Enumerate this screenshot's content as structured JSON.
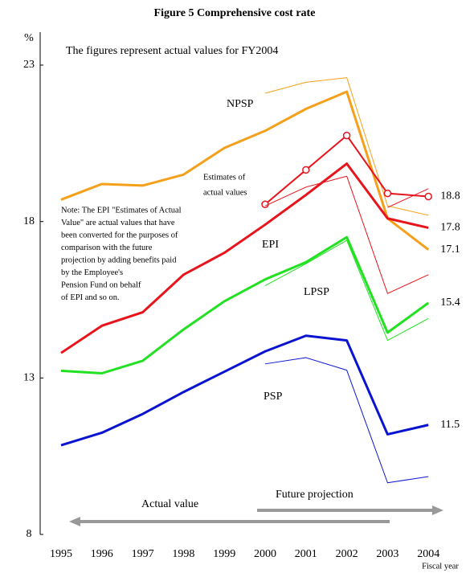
{
  "chart_data": {
    "type": "line",
    "title": "Figure 5  Comprehensive cost rate",
    "y_unit": "%",
    "x_label": "Fiscal year",
    "categories": [
      "1995",
      "1996",
      "1997",
      "1998",
      "1999",
      "2000",
      "2001",
      "2002",
      "2003",
      "2004"
    ],
    "ylim": [
      8,
      23
    ],
    "yticks": [
      8,
      13,
      18,
      23
    ],
    "series": [
      {
        "color": "#f5a01a",
        "linewidth": 3,
        "end_label": true,
        "values": [
          18.7,
          19.2,
          19.15,
          19.5,
          20.35,
          20.9,
          21.6,
          22.15,
          18.1,
          17.1
        ]
      },
      {
        "color": "#f5a01a",
        "linewidth": 1,
        "values": [
          null,
          null,
          null,
          null,
          null,
          22.1,
          22.45,
          22.6,
          18.5,
          18.2
        ]
      },
      {
        "color": "#e8141b",
        "linewidth": 3,
        "end_label": true,
        "values": [
          13.8,
          14.67,
          15.1,
          16.3,
          17.0,
          17.9,
          18.85,
          19.85,
          18.1,
          17.8
        ]
      },
      {
        "color": "#e8141b",
        "linewidth": 2,
        "marker": "circle",
        "end_label": true,
        "values": [
          null,
          null,
          null,
          null,
          null,
          18.55,
          19.65,
          20.75,
          18.9,
          18.8
        ]
      },
      {
        "color": "#e8141b",
        "linewidth": 1,
        "values": [
          null,
          null,
          null,
          null,
          null,
          18.5,
          19.1,
          19.45,
          15.7,
          16.3
        ]
      },
      {
        "color": "#e8141b",
        "linewidth": 1,
        "values": [
          null,
          null,
          null,
          null,
          null,
          null,
          null,
          null,
          18.45,
          19.05
        ]
      },
      {
        "color": "#22e022",
        "linewidth": 3,
        "end_label": true,
        "values": [
          13.23,
          13.15,
          13.55,
          14.55,
          15.45,
          16.15,
          16.7,
          17.5,
          14.45,
          15.4
        ]
      },
      {
        "color": "#22e022",
        "linewidth": 1,
        "values": [
          null,
          null,
          null,
          null,
          null,
          15.95,
          16.65,
          17.4,
          14.2,
          14.9
        ]
      },
      {
        "color": "#0a14d0",
        "linewidth": 3,
        "end_label": true,
        "values": [
          10.85,
          11.25,
          11.85,
          12.55,
          13.2,
          13.85,
          14.35,
          14.2,
          11.2,
          11.5
        ]
      },
      {
        "color": "#0a14d0",
        "linewidth": 1,
        "values": [
          null,
          null,
          null,
          null,
          null,
          13.45,
          13.65,
          13.25,
          9.65,
          9.85
        ]
      }
    ],
    "annotations": [
      {
        "text": "The figures represent actual values for FY2004",
        "color": "#000000"
      },
      {
        "text": "NPSP",
        "color": "#f5a01a"
      },
      {
        "text": "Estimates of",
        "color": "#e8141b"
      },
      {
        "text": "actual values",
        "color": "#e8141b"
      },
      {
        "text": "EPI",
        "color": "#e8141b"
      },
      {
        "text": "LPSP",
        "color": "#22e022"
      },
      {
        "text": "PSP",
        "color": "#0a14d0"
      },
      {
        "text": "Actual value",
        "color": "#000000"
      },
      {
        "text": "Future projection",
        "color": "#000000"
      }
    ],
    "note": [
      "Note: The EPI \"Estimates of Actual",
      "Value\" are actual values that have",
      "been converted for the purposes of",
      "comparison with the future",
      "projection by adding benefits paid",
      "by the Employee's",
      " Pension Fund on behalf",
      "of EPI and so on."
    ]
  }
}
